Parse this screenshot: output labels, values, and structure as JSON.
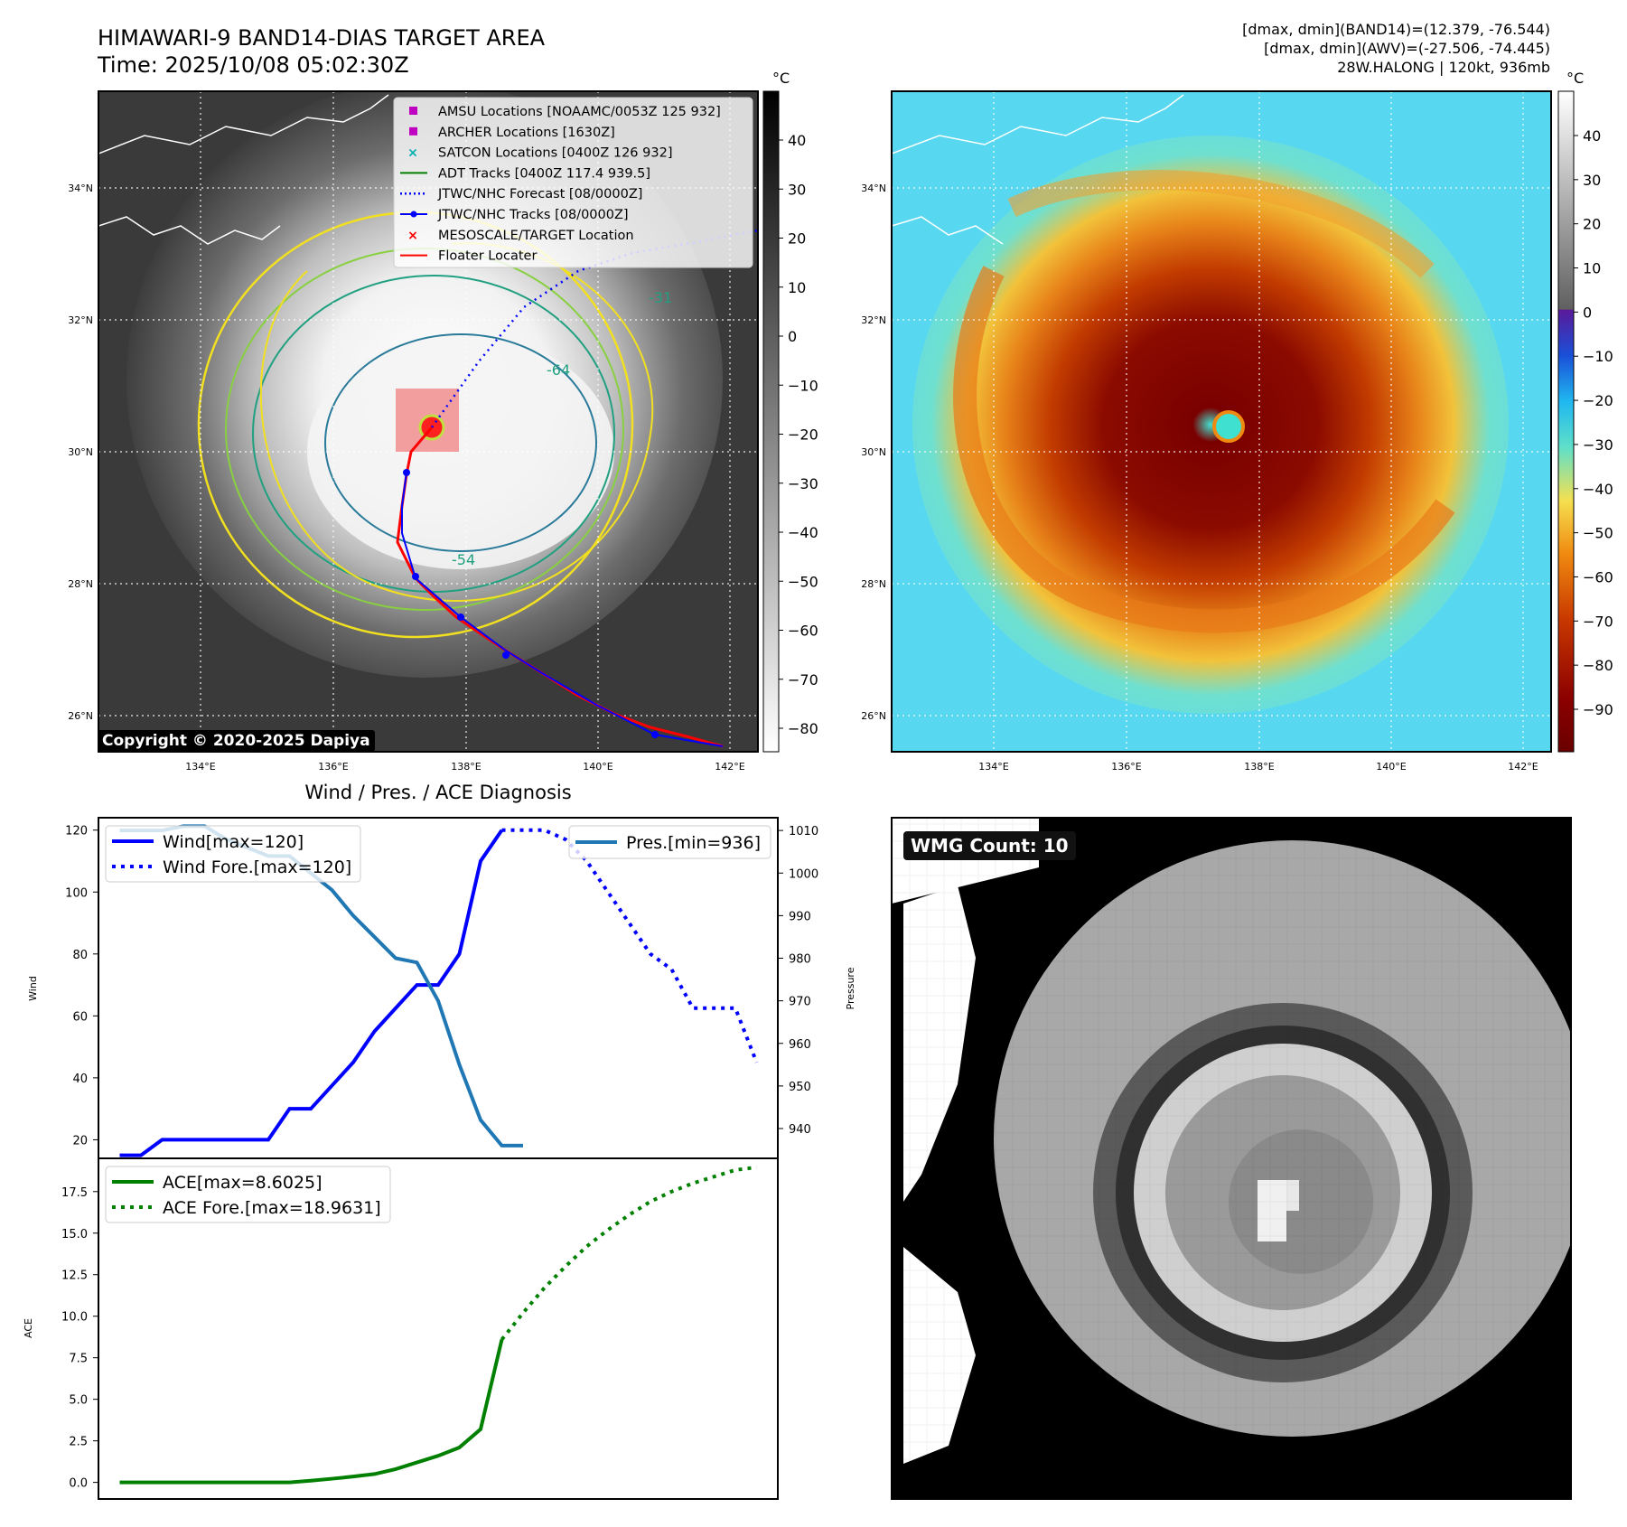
{
  "header": {
    "title_line1": "HIMAWARI-9 BAND14-DIAS TARGET AREA",
    "title_line2": "Time: 2025/10/08 05:02:30Z",
    "stats_line1": "[dmax, dmin](BAND14)=(12.379, -76.544)",
    "stats_line2": "[dmax, dmin](AWV)=(-27.506, -74.445)",
    "stats_line3": "28W.HALONG | 120kt, 936mb"
  },
  "map": {
    "lat_labels": [
      "34°N",
      "32°N",
      "30°N",
      "28°N",
      "26°N"
    ],
    "lon_labels": [
      "134°E",
      "136°E",
      "138°E",
      "140°E",
      "142°E"
    ],
    "copyright": "Copyright © 2020-2025 Dapiya",
    "legend": [
      {
        "label": "AMSU Locations [NOAAMC/0053Z 125 932]",
        "marker": "square",
        "color": "#c000c0"
      },
      {
        "label": "ARCHER Locations [1630Z]",
        "marker": "square",
        "color": "#c000c0"
      },
      {
        "label": "SATCON Locations [0400Z 126 932]",
        "marker": "x",
        "color": "#00b0b0"
      },
      {
        "label": "ADT Tracks [0400Z 117.4 939.5]",
        "marker": "line",
        "color": "#008000"
      },
      {
        "label": "JTWC/NHC Forecast [08/0000Z]",
        "marker": "dotted",
        "color": "#0000ff"
      },
      {
        "label": "JTWC/NHC Tracks [08/0000Z]",
        "marker": "line-dot",
        "color": "#0000ff"
      },
      {
        "label": "MESOSCALE/TARGET Location",
        "marker": "x",
        "color": "#ff0000"
      },
      {
        "label": "Floater Locater",
        "marker": "line",
        "color": "#ff0000"
      }
    ],
    "contour_labels": [
      "-31",
      "-54",
      "-64"
    ]
  },
  "colorbar_left": {
    "unit": "°C",
    "ticks": [
      "40",
      "30",
      "20",
      "10",
      "0",
      "−10",
      "−20",
      "−30",
      "−40",
      "−50",
      "−60",
      "−70",
      "−80"
    ]
  },
  "colorbar_right": {
    "unit": "°C",
    "ticks": [
      "40",
      "30",
      "20",
      "10",
      "0",
      "−10",
      "−20",
      "−30",
      "−40",
      "−50",
      "−60",
      "−70",
      "−80",
      "−90"
    ]
  },
  "wmg": {
    "label": "WMG Count: 10"
  },
  "chart_data": [
    {
      "type": "line",
      "title": "Wind / Pres. / ACE Diagnosis",
      "ylabel": "Wind",
      "y2label": "Pressure",
      "ylim": [
        14,
        124
      ],
      "y2lim": [
        933,
        1013
      ],
      "yticks": [
        "20",
        "40",
        "60",
        "80",
        "100",
        "120"
      ],
      "y2ticks": [
        "940",
        "950",
        "960",
        "970",
        "980",
        "990",
        "1000",
        "1010"
      ],
      "legend_left": [
        "Wind[max=120]",
        "Wind Fore.[max=120]"
      ],
      "legend_right": [
        "Pres.[min=936]"
      ],
      "series": [
        {
          "name": "Wind[max=120]",
          "color": "#0000ff",
          "style": "solid",
          "axis": "left",
          "x": [
            0,
            1,
            2,
            3,
            4,
            5,
            6,
            7,
            8,
            9,
            10,
            11,
            12,
            13,
            14,
            15,
            16,
            17,
            18
          ],
          "values": [
            15,
            15,
            20,
            20,
            20,
            20,
            20,
            20,
            30,
            30,
            37.5,
            45,
            55,
            62.5,
            70,
            70,
            80,
            110,
            120
          ]
        },
        {
          "name": "Wind Fore.[max=120]",
          "color": "#0000ff",
          "style": "dotted",
          "axis": "left",
          "x": [
            18,
            19,
            20,
            21,
            22,
            23,
            24,
            25,
            26,
            27,
            28,
            29,
            30
          ],
          "values": [
            120,
            120,
            120,
            117,
            110,
            100,
            90,
            80,
            75,
            62.5,
            62.5,
            62.5,
            45
          ]
        },
        {
          "name": "Pres.[min=936]",
          "color": "#1f77b4",
          "style": "solid",
          "axis": "right",
          "x": [
            0,
            1,
            2,
            3,
            4,
            5,
            6,
            7,
            8,
            9,
            10,
            11,
            12,
            13,
            14,
            15,
            16,
            17,
            18,
            19
          ],
          "values": [
            1010,
            1010,
            1010,
            1011,
            1011,
            1008,
            1006,
            1004,
            1004,
            1000,
            996,
            990,
            985,
            980,
            979,
            970,
            955,
            942,
            936,
            936
          ]
        }
      ]
    },
    {
      "type": "line",
      "ylabel": "ACE",
      "ylim": [
        -1,
        19.5
      ],
      "yticks": [
        "0.0",
        "2.5",
        "5.0",
        "7.5",
        "10.0",
        "12.5",
        "15.0",
        "17.5"
      ],
      "series": [
        {
          "name": "ACE[max=8.6025]",
          "color": "#008000",
          "style": "solid",
          "x": [
            0,
            1,
            2,
            3,
            4,
            5,
            6,
            7,
            8,
            9,
            10,
            11,
            12,
            13,
            14,
            15,
            16,
            17,
            18
          ],
          "values": [
            0,
            0,
            0,
            0,
            0,
            0,
            0,
            0,
            0,
            0.1,
            0.22,
            0.35,
            0.5,
            0.8,
            1.2,
            1.6,
            2.1,
            3.2,
            8.6
          ]
        },
        {
          "name": "ACE Fore.[max=18.9631]",
          "color": "#008000",
          "style": "dotted",
          "x": [
            18,
            19,
            20,
            21,
            22,
            23,
            24,
            25,
            26,
            27,
            28,
            29,
            30
          ],
          "values": [
            8.6,
            10.2,
            11.7,
            13.0,
            14.2,
            15.2,
            16.1,
            16.9,
            17.5,
            18.0,
            18.4,
            18.8,
            18.96
          ]
        }
      ]
    }
  ]
}
